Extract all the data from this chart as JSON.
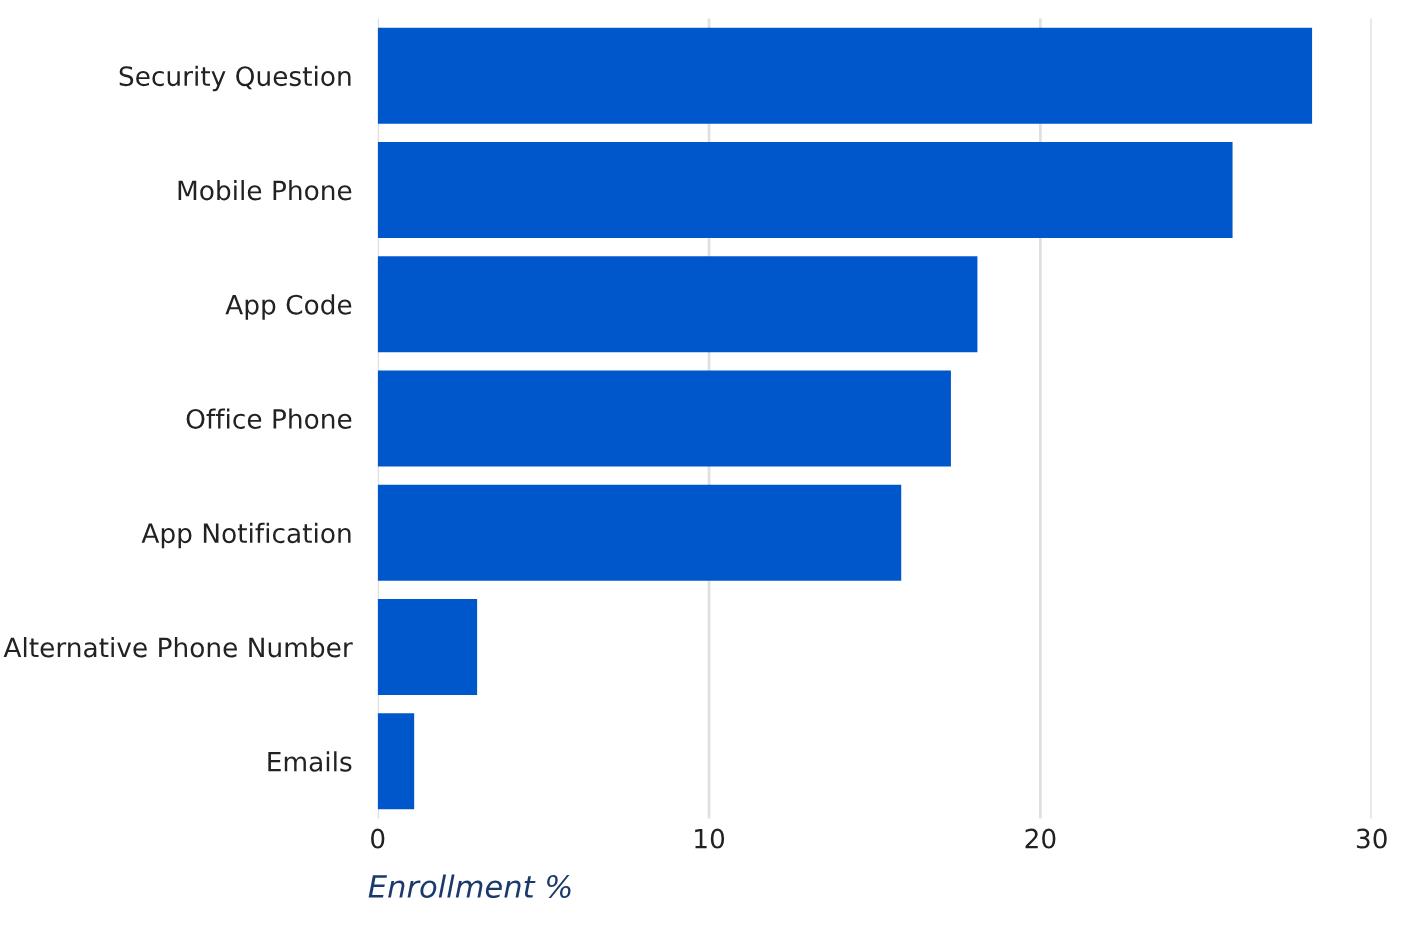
{
  "chart_data": {
    "type": "bar",
    "orientation": "horizontal",
    "categories": [
      "Security Question",
      "Mobile Phone",
      "App Code",
      "Office Phone",
      "App Notification",
      "Alternative Phone Number",
      "Emails"
    ],
    "values": [
      28.2,
      25.8,
      18.1,
      17.3,
      15.8,
      3.0,
      1.1
    ],
    "color": "#0057cc",
    "xlabel": "Enrollment %",
    "xlim": [
      0,
      30
    ],
    "xticks": [
      0,
      10,
      20,
      30
    ],
    "grid": "x"
  }
}
